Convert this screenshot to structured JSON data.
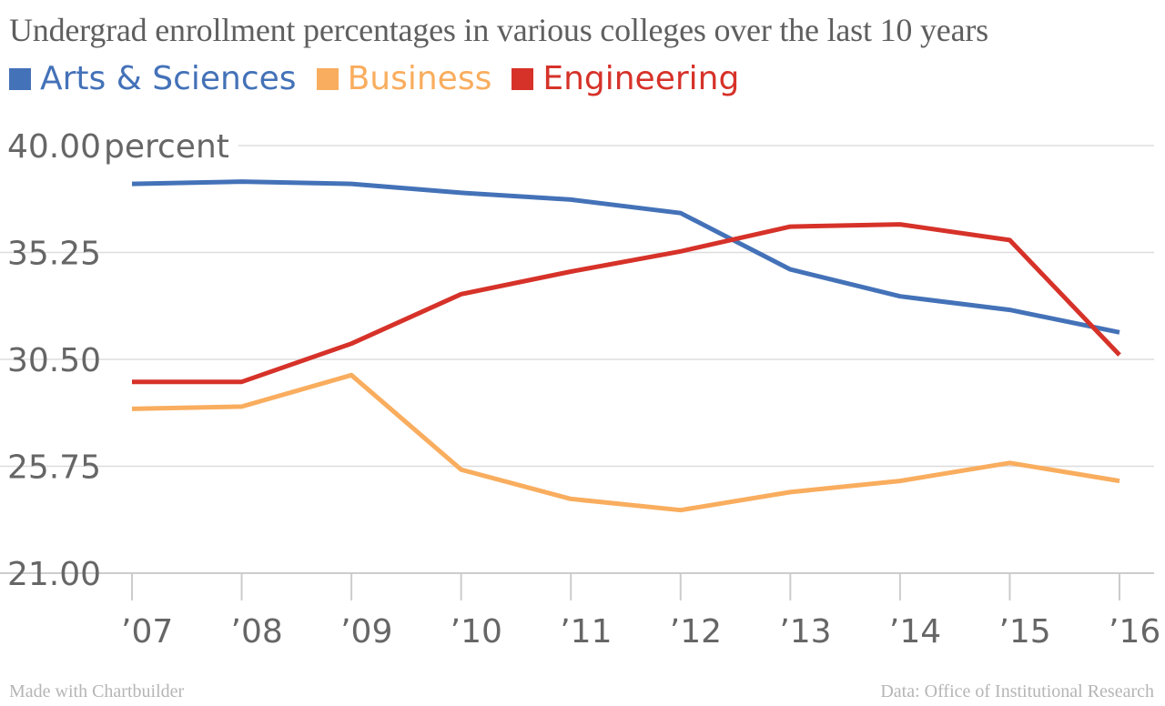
{
  "chart_data": {
    "type": "line",
    "title": "Undergrad enrollment percentages in various colleges over the last 10 years",
    "y_unit": "percent",
    "x": [
      "’07",
      "’08",
      "’09",
      "’10",
      "’11",
      "’12",
      "’13",
      "’14",
      "’15",
      "’16"
    ],
    "yticks": [
      "21.00",
      "25.75",
      "30.50",
      "35.25",
      "40.00"
    ],
    "ylim": [
      21.0,
      40.0
    ],
    "grid": true,
    "legend_position": "top-left",
    "series": [
      {
        "name": "Arts & Sciences",
        "color": "#4472b8",
        "values": [
          38.3,
          38.4,
          38.3,
          37.9,
          37.6,
          37.0,
          34.5,
          33.3,
          32.7,
          31.7
        ]
      },
      {
        "name": "Business",
        "color": "#f9ad5e",
        "values": [
          28.3,
          28.4,
          29.8,
          25.6,
          24.3,
          23.8,
          24.6,
          25.1,
          25.9,
          25.1
        ]
      },
      {
        "name": "Engineering",
        "color": "#d63229",
        "values": [
          29.5,
          29.5,
          31.2,
          33.4,
          34.4,
          35.3,
          36.4,
          36.5,
          35.8,
          30.7
        ]
      }
    ]
  },
  "footer": {
    "credit": "Made with Chartbuilder",
    "source": "Data: Office of Institutional Research"
  }
}
